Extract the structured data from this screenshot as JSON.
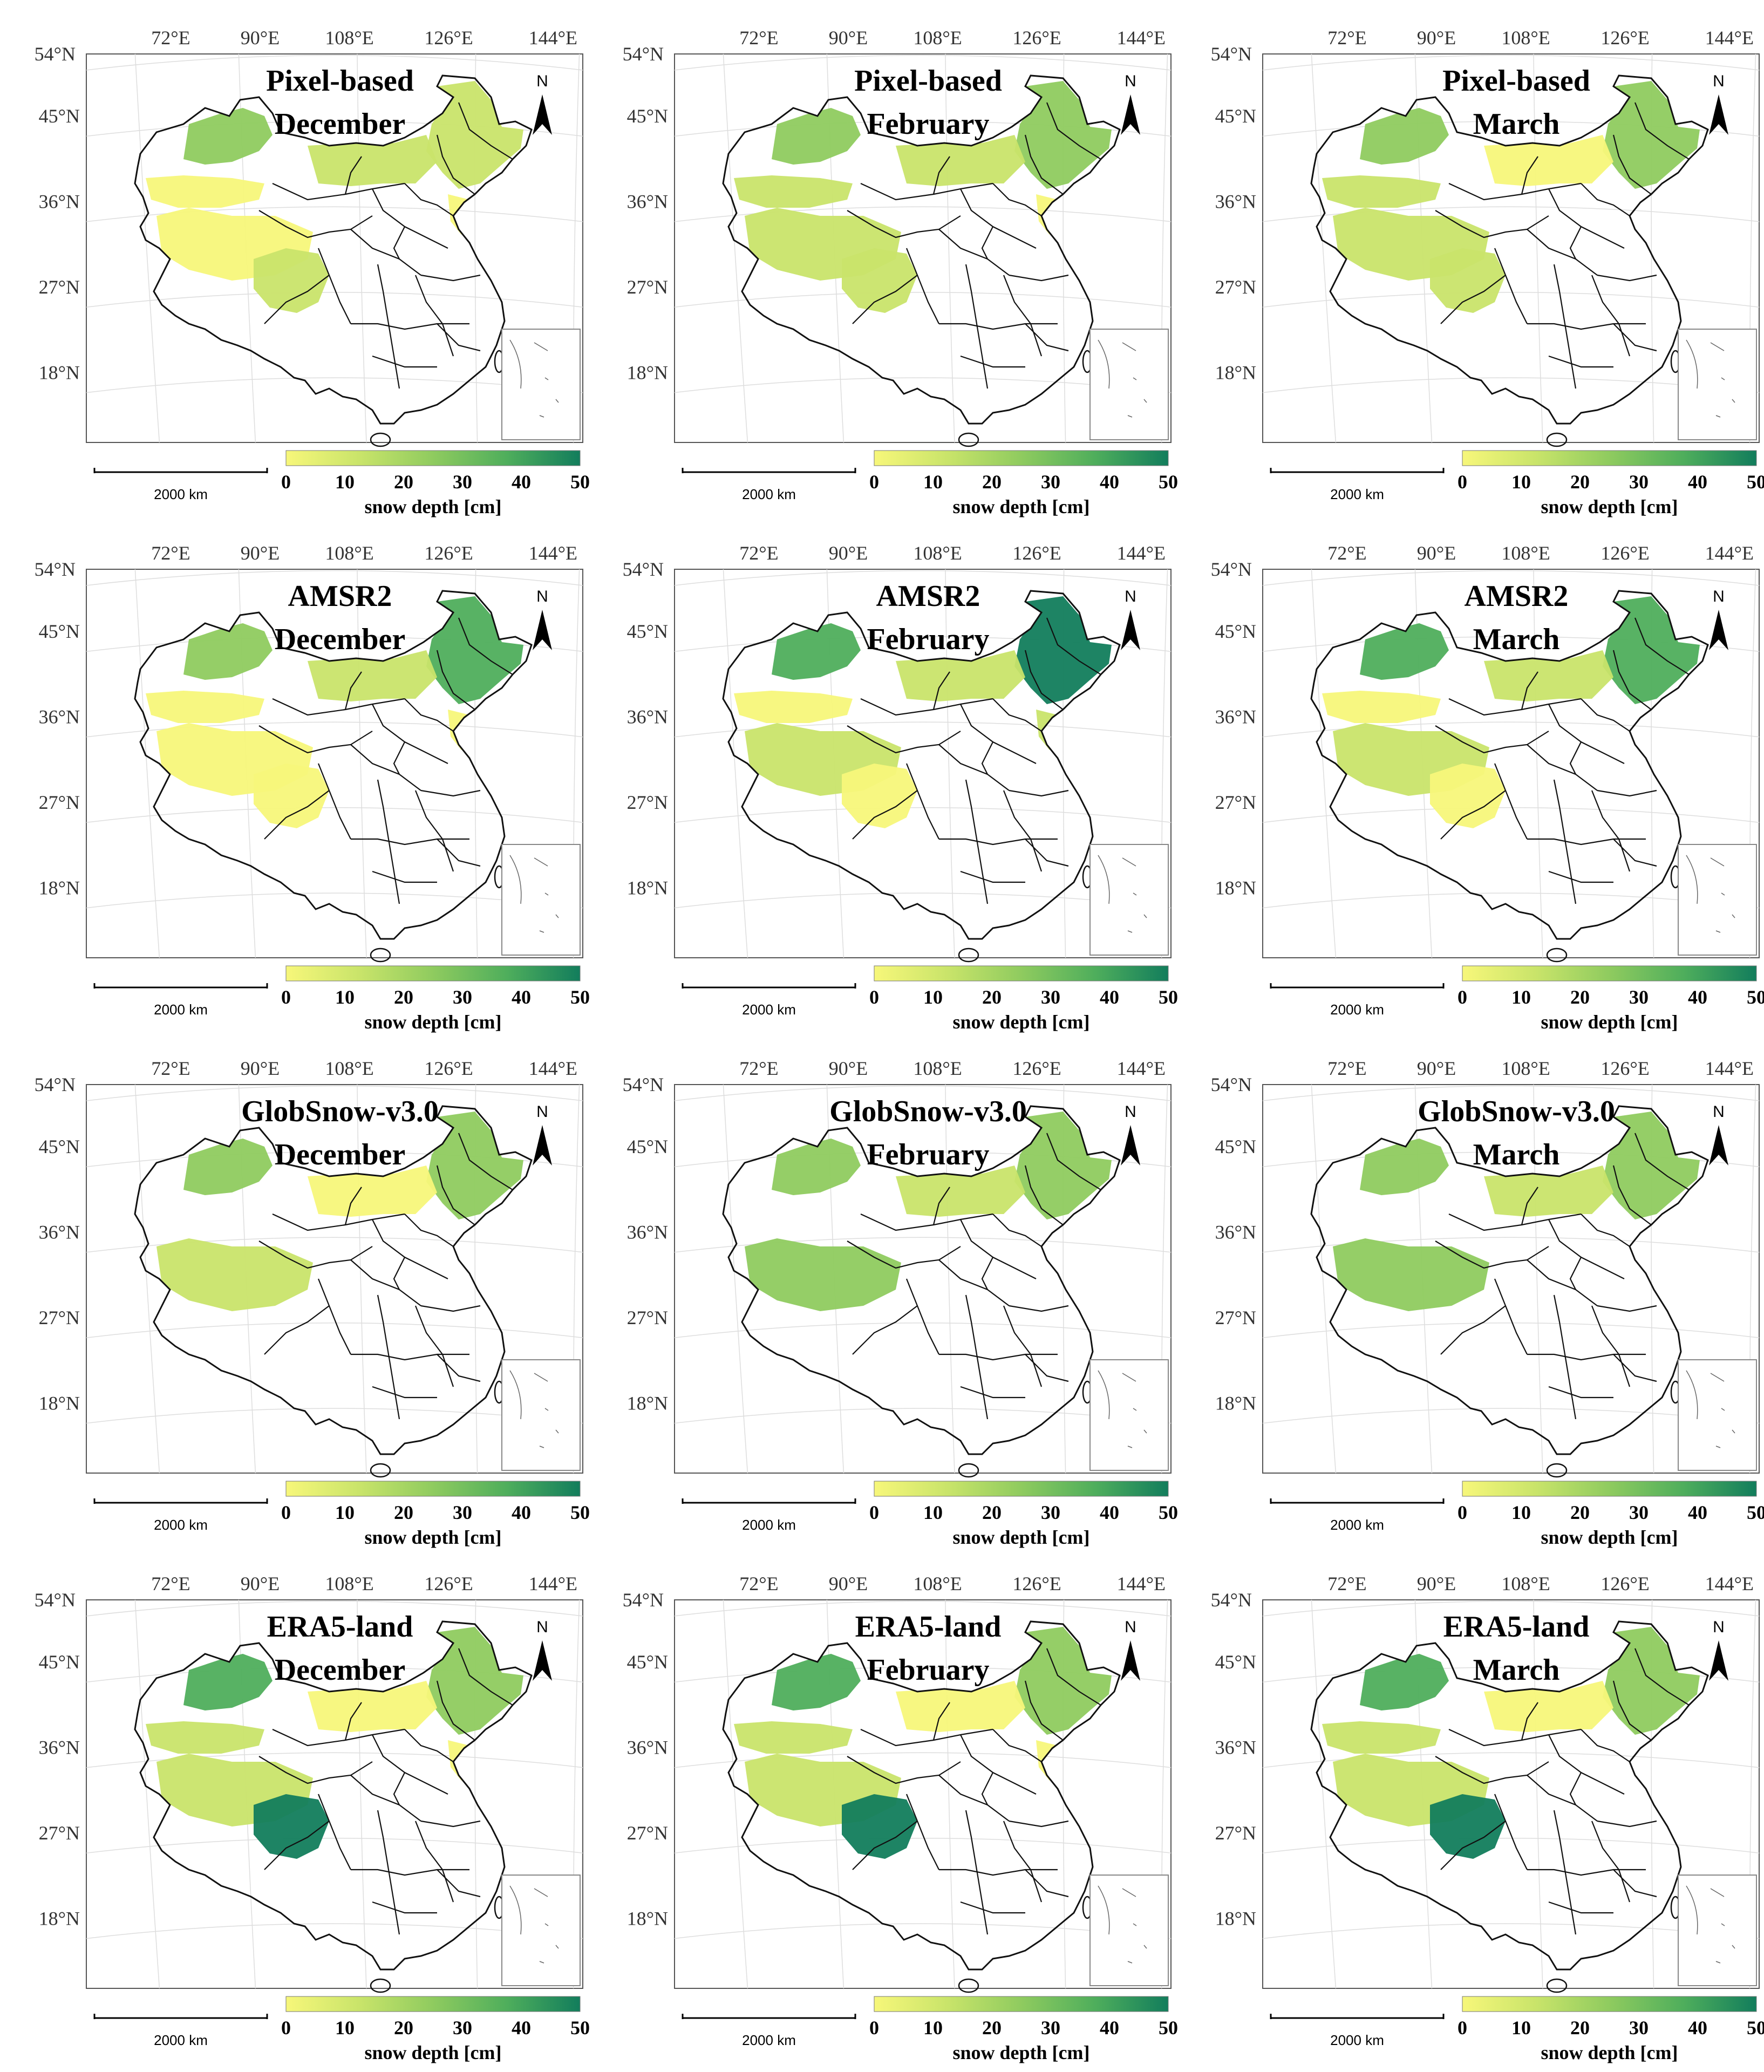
{
  "figure": {
    "lon_labels": [
      "72°E",
      "90°E",
      "108°E",
      "126°E",
      "144°E"
    ],
    "lat_labels": [
      "54°N",
      "45°N",
      "36°N",
      "27°N",
      "18°N"
    ],
    "scale_bar_label": "2000 km",
    "north_label": "N",
    "colorbar": {
      "label": "snow depth [cm]",
      "ticks": [
        "0",
        "10",
        "20",
        "30",
        "40",
        "50"
      ],
      "range": [
        0,
        50
      ],
      "colors": [
        "#f7f77a",
        "#c9e46a",
        "#8fcb5f",
        "#4fae5c",
        "#127d5c"
      ]
    },
    "colors": {
      "boundary": "#111111",
      "frame": "#555555",
      "graticule": "#dddddd",
      "inset_frame": "#888888"
    }
  },
  "panels": [
    {
      "product": "Pixel-based",
      "month": "December",
      "snow": {
        "northeast": 0.35,
        "north": 0.15,
        "xinjiang_north": 0.4,
        "xinjiang_south": 0.1,
        "tibet": 0.12,
        "se_tibet": 0.15,
        "east_coast": 0.1
      }
    },
    {
      "product": "Pixel-based",
      "month": "February",
      "snow": {
        "northeast": 0.45,
        "north": 0.15,
        "xinjiang_north": 0.5,
        "xinjiang_south": 0.15,
        "tibet": 0.2,
        "se_tibet": 0.2,
        "east_coast": 0.12
      }
    },
    {
      "product": "Pixel-based",
      "month": "March",
      "snow": {
        "northeast": 0.4,
        "north": 0.1,
        "xinjiang_north": 0.45,
        "xinjiang_south": 0.15,
        "tibet": 0.22,
        "se_tibet": 0.22,
        "east_coast": 0
      }
    },
    {
      "product": "AMSR2",
      "month": "December",
      "snow": {
        "northeast": 0.65,
        "north": 0.2,
        "xinjiang_north": 0.5,
        "xinjiang_south": 0.1,
        "tibet": 0.1,
        "se_tibet": 0.1,
        "east_coast": 0.1
      }
    },
    {
      "product": "AMSR2",
      "month": "February",
      "snow": {
        "northeast": 0.9,
        "north": 0.25,
        "xinjiang_north": 0.85,
        "xinjiang_south": 0.12,
        "tibet": 0.15,
        "se_tibet": 0.1,
        "east_coast": 0.15
      }
    },
    {
      "product": "AMSR2",
      "month": "March",
      "snow": {
        "northeast": 0.8,
        "north": 0.2,
        "xinjiang_north": 0.8,
        "xinjiang_south": 0.12,
        "tibet": 0.18,
        "se_tibet": 0.12,
        "east_coast": 0
      }
    },
    {
      "product": "GlobSnow-v3.0",
      "month": "December",
      "snow": {
        "northeast": 0.4,
        "north": 0.1,
        "xinjiang_north": 0.45,
        "xinjiang_south": 0,
        "tibet": 0.35,
        "se_tibet": 0,
        "east_coast": 0
      }
    },
    {
      "product": "GlobSnow-v3.0",
      "month": "February",
      "snow": {
        "northeast": 0.55,
        "north": 0.15,
        "xinjiang_north": 0.55,
        "xinjiang_south": 0,
        "tibet": 0.45,
        "se_tibet": 0,
        "east_coast": 0
      }
    },
    {
      "product": "GlobSnow-v3.0",
      "month": "March",
      "snow": {
        "northeast": 0.55,
        "north": 0.15,
        "xinjiang_north": 0.55,
        "xinjiang_south": 0,
        "tibet": 0.5,
        "se_tibet": 0,
        "east_coast": 0
      }
    },
    {
      "product": "ERA5-land",
      "month": "December",
      "snow": {
        "northeast": 0.45,
        "north": 0.12,
        "xinjiang_north": 0.8,
        "xinjiang_south": 0.15,
        "tibet": 0.15,
        "se_tibet": 0.9,
        "east_coast": 0.05
      }
    },
    {
      "product": "ERA5-land",
      "month": "February",
      "snow": {
        "northeast": 0.55,
        "north": 0.12,
        "xinjiang_north": 0.85,
        "xinjiang_south": 0.2,
        "tibet": 0.3,
        "se_tibet": 0.95,
        "east_coast": 0.08
      }
    },
    {
      "product": "ERA5-land",
      "month": "March",
      "snow": {
        "northeast": 0.5,
        "north": 0.1,
        "xinjiang_north": 0.85,
        "xinjiang_south": 0.2,
        "tibet": 0.35,
        "se_tibet": 0.95,
        "east_coast": 0
      }
    }
  ]
}
